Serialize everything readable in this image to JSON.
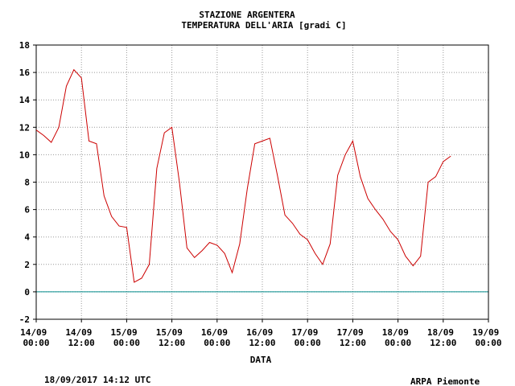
{
  "chart_data": {
    "type": "line",
    "title": "STAZIONE ARGENTERA",
    "subtitle": "TEMPERATURA DELL'ARIA [gradi C]",
    "x_label": "DATA",
    "footer_left": "18/09/2017 14:12 UTC",
    "footer_right": "ARPA Piemonte",
    "x": [
      "14/09 00:00",
      "14/09 02:00",
      "14/09 04:00",
      "14/09 06:00",
      "14/09 08:00",
      "14/09 10:00",
      "14/09 12:00",
      "14/09 14:00",
      "14/09 16:00",
      "14/09 18:00",
      "14/09 20:00",
      "14/09 22:00",
      "15/09 00:00",
      "15/09 02:00",
      "15/09 04:00",
      "15/09 06:00",
      "15/09 08:00",
      "15/09 10:00",
      "15/09 12:00",
      "15/09 14:00",
      "15/09 16:00",
      "15/09 18:00",
      "15/09 20:00",
      "15/09 22:00",
      "16/09 00:00",
      "16/09 02:00",
      "16/09 04:00",
      "16/09 06:00",
      "16/09 08:00",
      "16/09 10:00",
      "16/09 12:00",
      "16/09 14:00",
      "16/09 16:00",
      "16/09 18:00",
      "16/09 20:00",
      "16/09 22:00",
      "17/09 00:00",
      "17/09 02:00",
      "17/09 04:00",
      "17/09 06:00",
      "17/09 08:00",
      "17/09 10:00",
      "17/09 12:00",
      "17/09 14:00",
      "17/09 16:00",
      "17/09 18:00",
      "17/09 20:00",
      "17/09 22:00",
      "18/09 00:00",
      "18/09 02:00",
      "18/09 04:00",
      "18/09 06:00",
      "18/09 08:00",
      "18/09 10:00",
      "18/09 12:00",
      "18/09 14:00"
    ],
    "series": [
      {
        "name": "TEMPERATURA DELL'ARIA",
        "color": "#cc0000",
        "values": [
          11.8,
          11.4,
          10.9,
          12.0,
          15.0,
          16.2,
          15.6,
          11.0,
          10.8,
          7.0,
          5.5,
          4.8,
          4.7,
          0.7,
          1.0,
          2.0,
          9.0,
          11.6,
          12.0,
          8.0,
          3.2,
          2.5,
          3.0,
          3.6,
          3.4,
          2.8,
          1.4,
          3.5,
          7.5,
          10.8,
          11.0,
          11.2,
          8.5,
          5.6,
          5.0,
          4.2,
          3.8,
          2.8,
          2.0,
          3.5,
          8.5,
          10.0,
          11.0,
          8.4,
          6.8,
          6.0,
          5.3,
          4.4,
          3.8,
          2.6,
          1.9,
          2.6,
          8.0,
          8.4,
          9.5,
          9.9
        ]
      }
    ],
    "xlim": [
      "14/09 00:00",
      "19/09 00:00"
    ],
    "xticks": [
      "14/09 00:00",
      "14/09 12:00",
      "15/09 00:00",
      "15/09 12:00",
      "16/09 00:00",
      "16/09 12:00",
      "17/09 00:00",
      "17/09 12:00",
      "18/09 00:00",
      "18/09 12:00",
      "19/09 00:00"
    ],
    "ylim": [
      -2,
      18
    ],
    "yticks": [
      -2,
      0,
      2,
      4,
      6,
      8,
      10,
      12,
      14,
      16,
      18
    ],
    "grid": true,
    "zero_line_color": "#008b8b",
    "footer_right_color": "#1c1c9c"
  }
}
